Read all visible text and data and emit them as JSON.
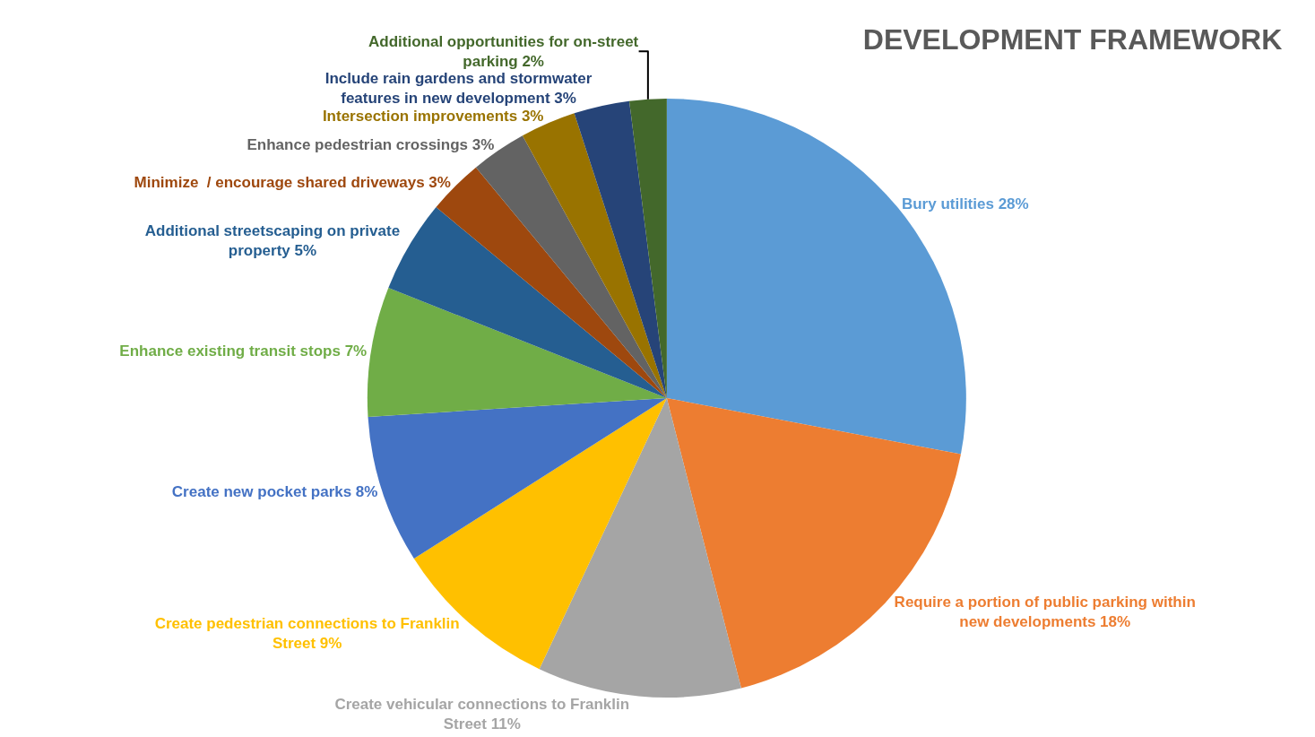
{
  "chart_data": {
    "type": "pie",
    "title": "DEVELOPMENT FRAMEWORK",
    "categories": [
      "Bury utilities",
      "Require a portion of public parking within new developments",
      "Create vehicular connections to Franklin Street",
      "Create pedestrian connections to Franklin Street",
      "Create new pocket parks",
      "Enhance existing transit stops",
      "Additional streetscaping on private property",
      "Minimize  / encourage shared driveways",
      "Enhance pedestrian crossings",
      "Intersection improvements",
      "Include rain gardens and stormwater features in new development",
      "Additional opportunities for on-street parking"
    ],
    "values": [
      28,
      18,
      11,
      9,
      8,
      7,
      5,
      3,
      3,
      3,
      3,
      2
    ],
    "value_labels": [
      "28%",
      "18%",
      "11%",
      "9%",
      "8%",
      "7%",
      "5%",
      "3%",
      "3%",
      "3%",
      "3%",
      "2%"
    ],
    "colors": [
      "#5b9bd5",
      "#ed7d31",
      "#a5a5a5",
      "#ffc000",
      "#4472c4",
      "#70ad47",
      "#255e91",
      "#9e480e",
      "#636363",
      "#997300",
      "#264478",
      "#43682b"
    ],
    "legend": false
  }
}
